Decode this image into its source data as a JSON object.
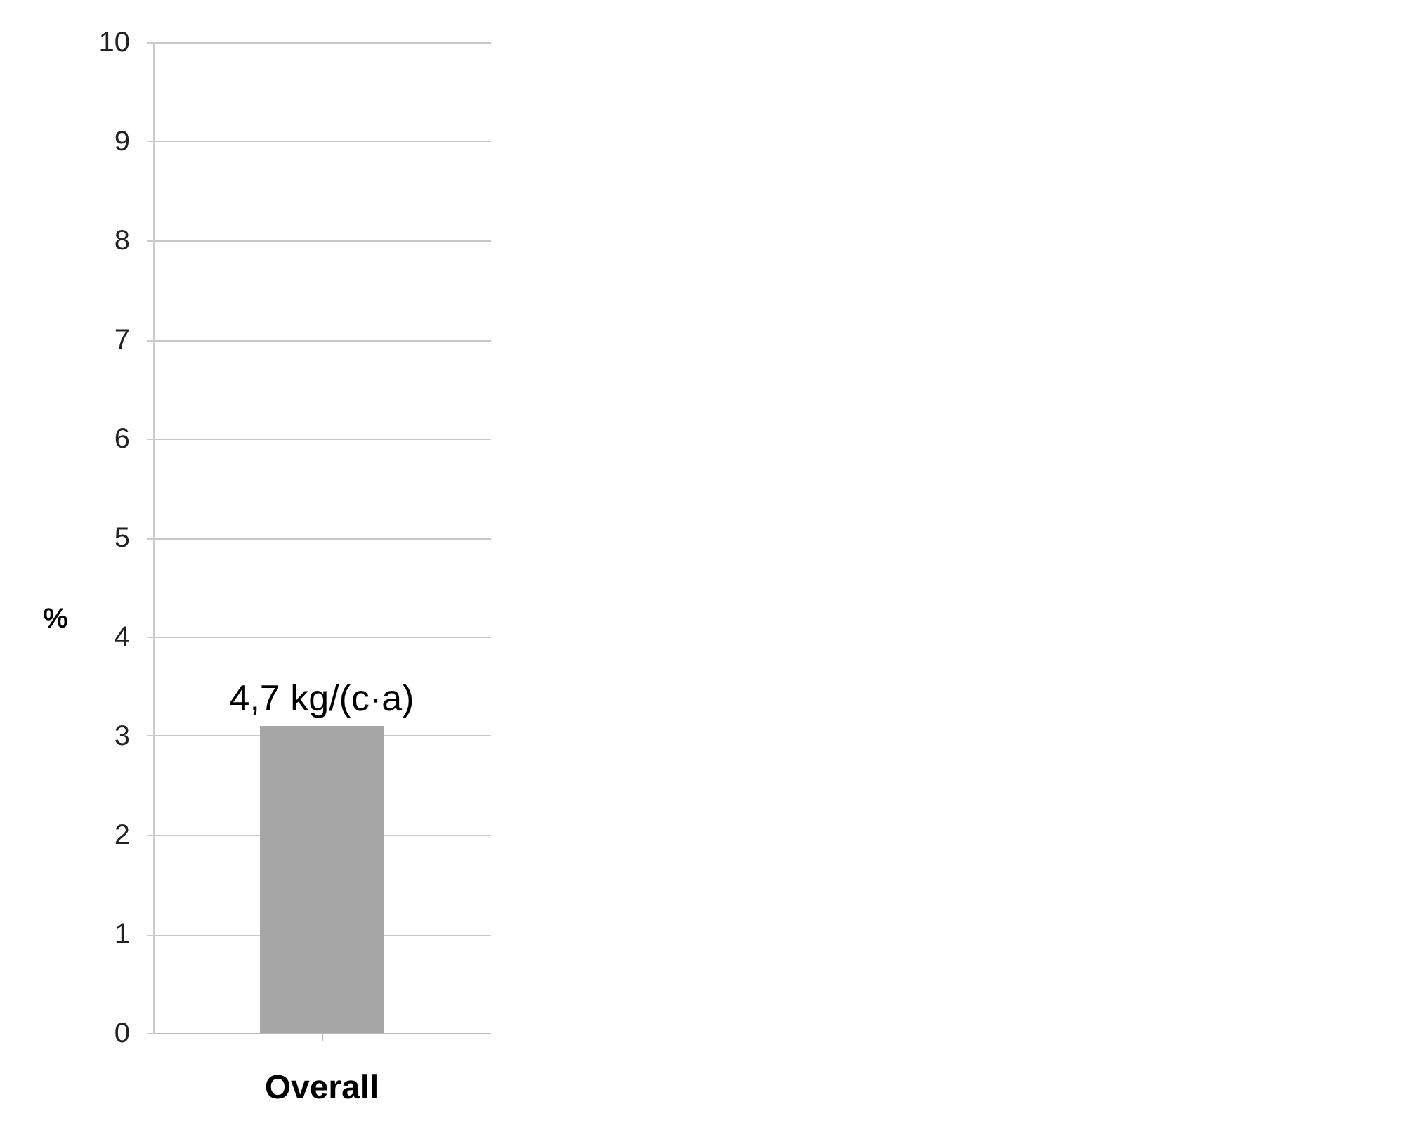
{
  "chart_data": {
    "type": "bar",
    "ylabel": "%",
    "categories": [
      "Overall"
    ],
    "series": [
      {
        "color": "#a6a6a6",
        "values": [
          3.1
        ]
      }
    ],
    "annotations": [
      {
        "text": "4,7 kg/(c·a)",
        "x": "Overall",
        "y": 3.1
      }
    ],
    "ylim": [
      0,
      10
    ],
    "yticks": [
      0,
      1,
      2,
      3,
      4,
      5,
      6,
      7,
      8,
      9,
      10
    ],
    "grid": "y"
  }
}
